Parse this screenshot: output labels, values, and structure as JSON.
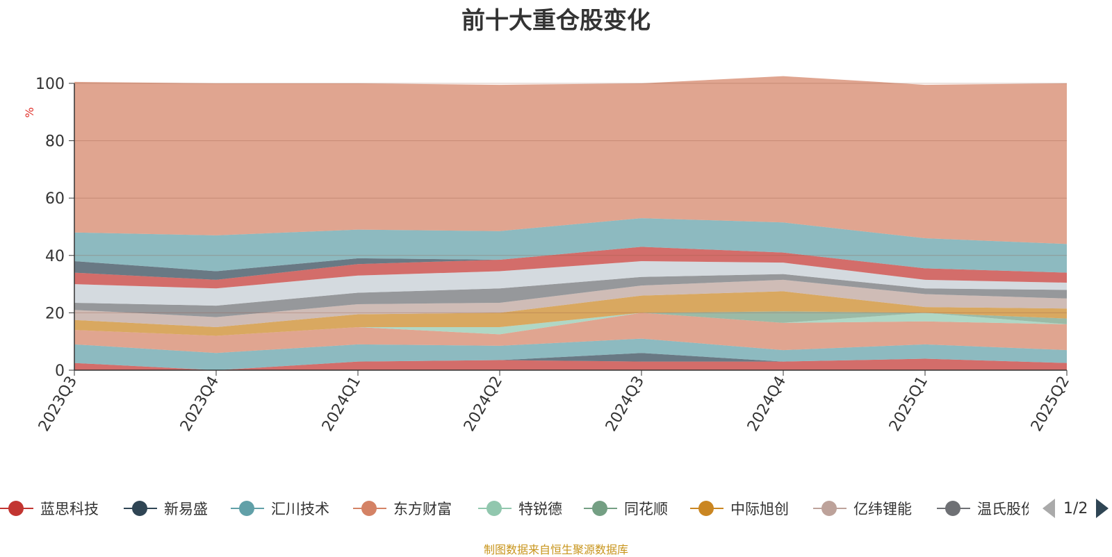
{
  "chart_data": {
    "type": "area",
    "stacked": true,
    "title": "前十大重仓股变化",
    "ylabel": "%",
    "ylim": [
      0,
      100
    ],
    "yticks": [
      0,
      20,
      40,
      60,
      80,
      100
    ],
    "grid": true,
    "x": [
      "2023Q3",
      "2023Q4",
      "2024Q1",
      "2024Q2",
      "2024Q3",
      "2024Q4",
      "2025Q1",
      "2025Q2"
    ],
    "series": [
      {
        "name": "蓝思科技",
        "color": "#c23531",
        "values": [
          2.5,
          0,
          3,
          3.5,
          3,
          3,
          4,
          2.5
        ]
      },
      {
        "name": "新易盛",
        "color": "#2f4554",
        "values": [
          0,
          0,
          0,
          0,
          3,
          0,
          0,
          0
        ]
      },
      {
        "name": "汇川技术",
        "color": "#61a0a8",
        "values": [
          6.5,
          6,
          6,
          5,
          5,
          4,
          5,
          4.5
        ]
      },
      {
        "name": "东方财富",
        "color": "#d48265",
        "values": [
          5,
          6,
          6,
          4,
          9,
          9.5,
          8,
          9
        ]
      },
      {
        "name": "特锐德",
        "color": "#91c7ae",
        "values": [
          0,
          0,
          0,
          2.5,
          0,
          0,
          3,
          0
        ]
      },
      {
        "name": "同花顺",
        "color": "#749f83",
        "values": [
          0,
          0,
          0,
          0,
          0,
          4,
          0,
          2
        ]
      },
      {
        "name": "中际旭创",
        "color": "#ca8622",
        "values": [
          3.5,
          3,
          4.5,
          5,
          6,
          7,
          2,
          3.5
        ]
      },
      {
        "name": "亿纬锂能",
        "color": "#bda29a",
        "values": [
          3.5,
          3.5,
          3.5,
          3.5,
          3.5,
          4,
          4.5,
          3.5
        ]
      },
      {
        "name": "温氏股份",
        "color": "#6e7074",
        "values": [
          2.5,
          4,
          4,
          5,
          3,
          2,
          2,
          3
        ]
      },
      {
        "name": "",
        "color": "#c4ccd3",
        "values": [
          6.5,
          6,
          6,
          6,
          5.5,
          4,
          3,
          2.5
        ]
      },
      {
        "name": "",
        "color": "#c23531",
        "values": [
          4,
          3,
          4,
          4,
          5,
          3.5,
          4,
          3.5
        ]
      },
      {
        "name": "",
        "color": "#2f4554",
        "values": [
          4,
          3,
          2,
          0,
          0,
          0,
          0,
          0
        ]
      },
      {
        "name": "",
        "color": "#61a0a8",
        "values": [
          10,
          12.5,
          10,
          10,
          10,
          10.5,
          10.5,
          10
        ]
      },
      {
        "name": "",
        "color": "#d48265",
        "values": [
          52.5,
          53,
          51,
          51,
          47,
          51,
          53.5,
          56
        ]
      }
    ]
  },
  "legend": {
    "page_text": "1/2",
    "items": [
      {
        "name": "蓝思科技",
        "color": "#c23531"
      },
      {
        "name": "新易盛",
        "color": "#2f4554"
      },
      {
        "name": "汇川技术",
        "color": "#61a0a8"
      },
      {
        "name": "东方财富",
        "color": "#d48265"
      },
      {
        "name": "特锐德",
        "color": "#91c7ae"
      },
      {
        "name": "同花顺",
        "color": "#749f83"
      },
      {
        "name": "中际旭创",
        "color": "#ca8622"
      },
      {
        "name": "亿纬锂能",
        "color": "#bda29a"
      },
      {
        "name": "温氏股份",
        "color": "#6e7074"
      }
    ]
  },
  "source_note": "制图数据来自恒生聚源数据库"
}
